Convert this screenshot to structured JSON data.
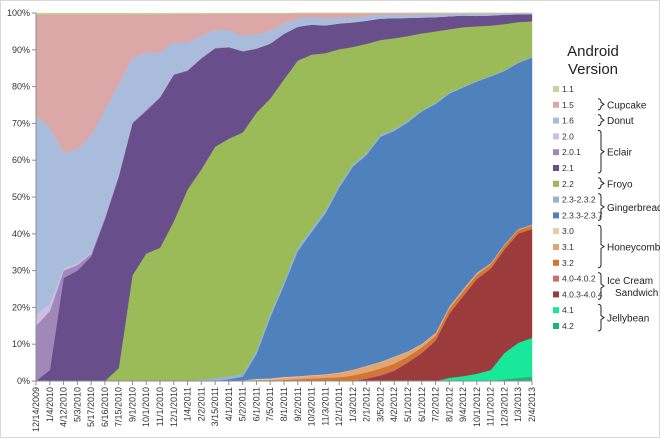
{
  "chart_data": {
    "type": "area",
    "stacked": true,
    "percent": true,
    "title": "",
    "xlabel": "",
    "ylabel": "",
    "ylim": [
      0,
      100
    ],
    "yticks": [
      "0%",
      "10%",
      "20%",
      "30%",
      "40%",
      "50%",
      "60%",
      "70%",
      "80%",
      "90%",
      "100%"
    ],
    "grid": false,
    "legend_position": "right",
    "legend_title": "Android Version",
    "categories": [
      "12/14/2009",
      "1/4/2010",
      "4/12/2010",
      "5/3/2010",
      "5/17/2010",
      "6/16/2010",
      "7/15/2010",
      "9/1/2010",
      "10/1/2010",
      "11/1/2010",
      "12/1/2010",
      "1/4/2011",
      "2/2/2011",
      "3/15/2011",
      "4/1/2011",
      "5/2/2011",
      "6/1/2011",
      "7/5/2011",
      "8/1/2011",
      "9/2/2011",
      "10/3/2011",
      "11/3/2011",
      "12/1/2011",
      "1/3/2012",
      "2/1/2012",
      "3/5/2012",
      "4/2/2012",
      "5/1/2012",
      "6/1/2012",
      "7/2/2012",
      "8/1/2012",
      "9/4/2012",
      "10/1/2012",
      "11/1/2012",
      "12/3/2012",
      "1/3/2013",
      "2/4/2013"
    ],
    "series": [
      {
        "name": "4.2",
        "color": "#1fb37a",
        "values": [
          0,
          0,
          0,
          0,
          0,
          0,
          0,
          0,
          0,
          0,
          0,
          0,
          0,
          0,
          0,
          0,
          0,
          0,
          0,
          0,
          0,
          0,
          0,
          0,
          0,
          0,
          0,
          0,
          0,
          0,
          0,
          0,
          0,
          0,
          0.4,
          0.8,
          1.2
        ]
      },
      {
        "name": "4.1",
        "color": "#17e89a",
        "values": [
          0,
          0,
          0,
          0,
          0,
          0,
          0,
          0,
          0,
          0,
          0,
          0,
          0,
          0,
          0,
          0,
          0,
          0,
          0,
          0,
          0,
          0,
          0,
          0,
          0,
          0,
          0,
          0,
          0,
          0,
          0.8,
          1.2,
          1.8,
          2.7,
          6.7,
          9.0,
          10.2
        ]
      },
      {
        "name": "4.0.3-4.0.4",
        "color": "#9b3b3b",
        "values": [
          0,
          0,
          0,
          0,
          0,
          0,
          0,
          0,
          0,
          0,
          0,
          0,
          0,
          0,
          0,
          0,
          0,
          0,
          0,
          0,
          0,
          0,
          0,
          0,
          0.6,
          1.4,
          2.6,
          4.7,
          7.0,
          10.1,
          15.8,
          19.6,
          23.5,
          25.1,
          26.2,
          28.0,
          28.8
        ]
      },
      {
        "name": "4.0-4.0.2",
        "color": "#cf6b6b",
        "values": [
          0,
          0,
          0,
          0,
          0,
          0,
          0,
          0,
          0,
          0,
          0,
          0,
          0,
          0,
          0,
          0,
          0,
          0,
          0,
          0,
          0,
          0,
          0,
          0.3,
          0.4,
          0.4,
          0.4,
          0.3,
          0.3,
          0.2,
          0.2,
          0.2,
          0.2,
          0.1,
          0.1,
          0.1,
          0.1
        ]
      },
      {
        "name": "3.2",
        "color": "#d2772e",
        "values": [
          0,
          0,
          0,
          0,
          0,
          0,
          0,
          0,
          0,
          0,
          0,
          0,
          0,
          0,
          0,
          0,
          0,
          0,
          0.3,
          0.5,
          0.7,
          0.9,
          1.0,
          1.2,
          1.3,
          1.4,
          1.4,
          1.2,
          1.1,
          1.0,
          1.0,
          1.0,
          0.9,
          0.9,
          0.9,
          0.8,
          0.8
        ]
      },
      {
        "name": "3.1",
        "color": "#e3a574",
        "values": [
          0,
          0,
          0,
          0,
          0,
          0,
          0,
          0,
          0,
          0,
          0,
          0,
          0,
          0,
          0,
          0,
          0.3,
          0.4,
          0.6,
          0.6,
          0.7,
          0.8,
          1.2,
          1.4,
          1.6,
          1.6,
          1.7,
          1.2,
          0.8,
          0.6,
          0.5,
          0.5,
          0.4,
          0.4,
          0.3,
          0.3,
          0.3
        ]
      },
      {
        "name": "3.0",
        "color": "#efc8a6",
        "values": [
          0,
          0,
          0,
          0,
          0,
          0,
          0,
          0,
          0,
          0,
          0,
          0,
          0,
          0,
          0,
          0.2,
          0.3,
          0.3,
          0.2,
          0.2,
          0.2,
          0.1,
          0.1,
          0.1,
          0.1,
          0.1,
          0.1,
          0.1,
          0.1,
          0.1,
          0.1,
          0.1,
          0.1,
          0,
          0,
          0,
          0
        ]
      },
      {
        "name": "2.3.3-2.3.7",
        "color": "#4f81bd",
        "values": [
          0,
          0,
          0,
          0,
          0,
          0,
          0,
          0,
          0,
          0,
          0,
          0,
          0,
          0,
          0.5,
          1.0,
          6.7,
          16.7,
          25.0,
          34.0,
          38.5,
          43.3,
          49.9,
          54.6,
          55.6,
          57.4,
          57.4,
          57.8,
          58.1,
          57.2,
          52.6,
          49.6,
          47.4,
          46.3,
          43.9,
          42.6,
          44.2
        ]
      },
      {
        "name": "2.3-2.3.2",
        "color": "#95b3d7",
        "values": [
          0,
          0,
          0,
          0,
          0,
          0,
          0,
          0,
          0,
          0,
          0,
          0,
          0.5,
          0.8,
          0.8,
          0.7,
          0.9,
          1.0,
          1.0,
          1.0,
          0.9,
          0.8,
          0.7,
          0.6,
          0.5,
          0.5,
          0.4,
          0.4,
          0.3,
          0.3,
          0.3,
          0.2,
          0.2,
          0.2,
          0.2,
          0.2,
          0.2
        ]
      },
      {
        "name": "2.2",
        "color": "#9bbb59",
        "values": [
          0,
          0,
          0,
          0,
          0,
          0,
          3.5,
          28.7,
          33.2,
          36.2,
          43.4,
          52.0,
          57.0,
          62.8,
          64.5,
          65.6,
          64.6,
          58.8,
          54.8,
          50.8,
          46.8,
          42.3,
          36.7,
          31.5,
          28.7,
          24.2,
          23.2,
          21.3,
          19.2,
          17.8,
          15.6,
          14.6,
          13.5,
          12.4,
          11.7,
          10.3,
          9.4
        ]
      },
      {
        "name": "2.1",
        "color": "#684e8a",
        "values": [
          0,
          3.0,
          28.0,
          30.0,
          33.8,
          44.0,
          52.0,
          41.3,
          37.1,
          40.8,
          39.8,
          32.2,
          30.1,
          26.7,
          24.8,
          22.0,
          17.4,
          15.0,
          12.3,
          9.2,
          8.1,
          7.5,
          7.0,
          6.6,
          6.1,
          5.5,
          5.1,
          4.6,
          4.0,
          3.6,
          3.2,
          2.9,
          2.6,
          2.5,
          2.4,
          2.0,
          1.9
        ]
      },
      {
        "name": "2.0.1",
        "color": "#a088bb",
        "values": [
          15.0,
          16.0,
          2.0,
          1.5,
          0.7,
          0.5,
          0.4,
          0.3,
          0.3,
          0.2,
          0.2,
          0.2,
          0.2,
          0.2,
          0.1,
          0.1,
          0.1,
          0.1,
          0.1,
          0,
          0,
          0,
          0,
          0,
          0,
          0,
          0,
          0,
          0,
          0,
          0,
          0,
          0,
          0,
          0,
          0,
          0
        ]
      },
      {
        "name": "2.0",
        "color": "#cdbfdf",
        "values": [
          3.0,
          2.0,
          0.6,
          0.5,
          0.4,
          0.3,
          0.2,
          0.1,
          0.1,
          0.1,
          0.1,
          0.1,
          0.1,
          0,
          0,
          0,
          0,
          0,
          0,
          0,
          0,
          0,
          0,
          0,
          0,
          0,
          0,
          0,
          0,
          0,
          0,
          0,
          0,
          0,
          0,
          0,
          0
        ]
      },
      {
        "name": "1.6",
        "color": "#a9bcdc",
        "values": [
          54.0,
          48.0,
          31.5,
          31.0,
          32.0,
          29.0,
          24.5,
          17.5,
          14.8,
          12.0,
          8.5,
          7.4,
          5.9,
          4.9,
          4.5,
          4.2,
          3.8,
          3.4,
          2.8,
          2.3,
          2.1,
          1.9,
          1.6,
          1.4,
          1.2,
          1.1,
          0.9,
          0.8,
          0.8,
          0.7,
          0.6,
          0.5,
          0.5,
          0.4,
          0.3,
          0.2,
          0.2
        ]
      },
      {
        "name": "1.5",
        "color": "#dba8a7",
        "values": [
          27.6,
          30.7,
          37.6,
          36.7,
          32.8,
          25.9,
          19.1,
          11.8,
          10.0,
          10.4,
          7.8,
          7.8,
          6.0,
          4.4,
          4.6,
          6.0,
          5.7,
          4.8,
          2.7,
          1.4,
          1.0,
          1.4,
          1.2,
          1.1,
          0.8,
          0.3,
          0.4,
          0.4,
          0.3,
          0.3,
          0.2,
          0.1,
          0.2,
          0.2,
          0.1,
          0.1,
          0.1
        ]
      },
      {
        "name": "1.1",
        "color": "#c4d79b",
        "values": [
          0.4,
          0.3,
          0.3,
          0.3,
          0.3,
          0.3,
          0.3,
          0.3,
          0.3,
          0.3,
          0.2,
          0.2,
          0.2,
          0.1,
          0.1,
          0.1,
          0.1,
          0.1,
          0.1,
          0,
          0,
          0,
          0,
          0,
          0,
          0,
          0,
          0,
          0,
          0,
          0,
          0,
          0,
          0,
          0,
          0,
          0
        ]
      }
    ],
    "legend_groups": [
      {
        "label": "Cupcake",
        "members": [
          "1.5"
        ]
      },
      {
        "label": "Donut",
        "members": [
          "1.6"
        ]
      },
      {
        "label": "Eclair",
        "members": [
          "2.0",
          "2.0.1",
          "2.1"
        ]
      },
      {
        "label": "Froyo",
        "members": [
          "2.2"
        ]
      },
      {
        "label": "Gingerbread",
        "members": [
          "2.3-2.3.2",
          "2.3.3-2.3.7"
        ]
      },
      {
        "label": "Honeycomb",
        "members": [
          "3.0",
          "3.1",
          "3.2"
        ]
      },
      {
        "label": "Ice Cream Sandwich",
        "members": [
          "4.0-4.0.2",
          "4.0.3-4.0.4"
        ]
      },
      {
        "label": "Jellybean",
        "members": [
          "4.1",
          "4.2"
        ]
      }
    ]
  },
  "legend": {
    "title_line1": "Android",
    "title_line2": "Version",
    "items": [
      {
        "label": "1.1",
        "color": "#c4d79b"
      },
      {
        "label": "1.5",
        "color": "#dba8a7"
      },
      {
        "label": "1.6",
        "color": "#a9bcdc"
      },
      {
        "label": "2.0",
        "color": "#cdbfdf"
      },
      {
        "label": "2.0.1",
        "color": "#a088bb"
      },
      {
        "label": "2.1",
        "color": "#684e8a"
      },
      {
        "label": "2.2",
        "color": "#9bbb59"
      },
      {
        "label": "2.3-2.3.2",
        "color": "#95b3d7"
      },
      {
        "label": "2.3.3-2.3.7",
        "color": "#4f81bd"
      },
      {
        "label": "3.0",
        "color": "#efc8a6"
      },
      {
        "label": "3.1",
        "color": "#e3a574"
      },
      {
        "label": "3.2",
        "color": "#d2772e"
      },
      {
        "label": "4.0-4.0.2",
        "color": "#cf6b6b"
      },
      {
        "label": "4.0.3-4.0.4",
        "color": "#9b3b3b"
      },
      {
        "label": "4.1",
        "color": "#17e89a"
      },
      {
        "label": "4.2",
        "color": "#1fb37a"
      }
    ],
    "groups": [
      {
        "label_lines": [
          "Cupcake"
        ],
        "from": 1,
        "to": 1
      },
      {
        "label_lines": [
          "Donut"
        ],
        "from": 2,
        "to": 2
      },
      {
        "label_lines": [
          "Eclair"
        ],
        "from": 3,
        "to": 5
      },
      {
        "label_lines": [
          "Froyo"
        ],
        "from": 6,
        "to": 6
      },
      {
        "label_lines": [
          "Gingerbread"
        ],
        "from": 7,
        "to": 8
      },
      {
        "label_lines": [
          "Honeycomb"
        ],
        "from": 9,
        "to": 11
      },
      {
        "label_lines": [
          "Ice Cream",
          "Sandwich"
        ],
        "from": 12,
        "to": 13
      },
      {
        "label_lines": [
          "Jellybean"
        ],
        "from": 14,
        "to": 15
      }
    ]
  }
}
